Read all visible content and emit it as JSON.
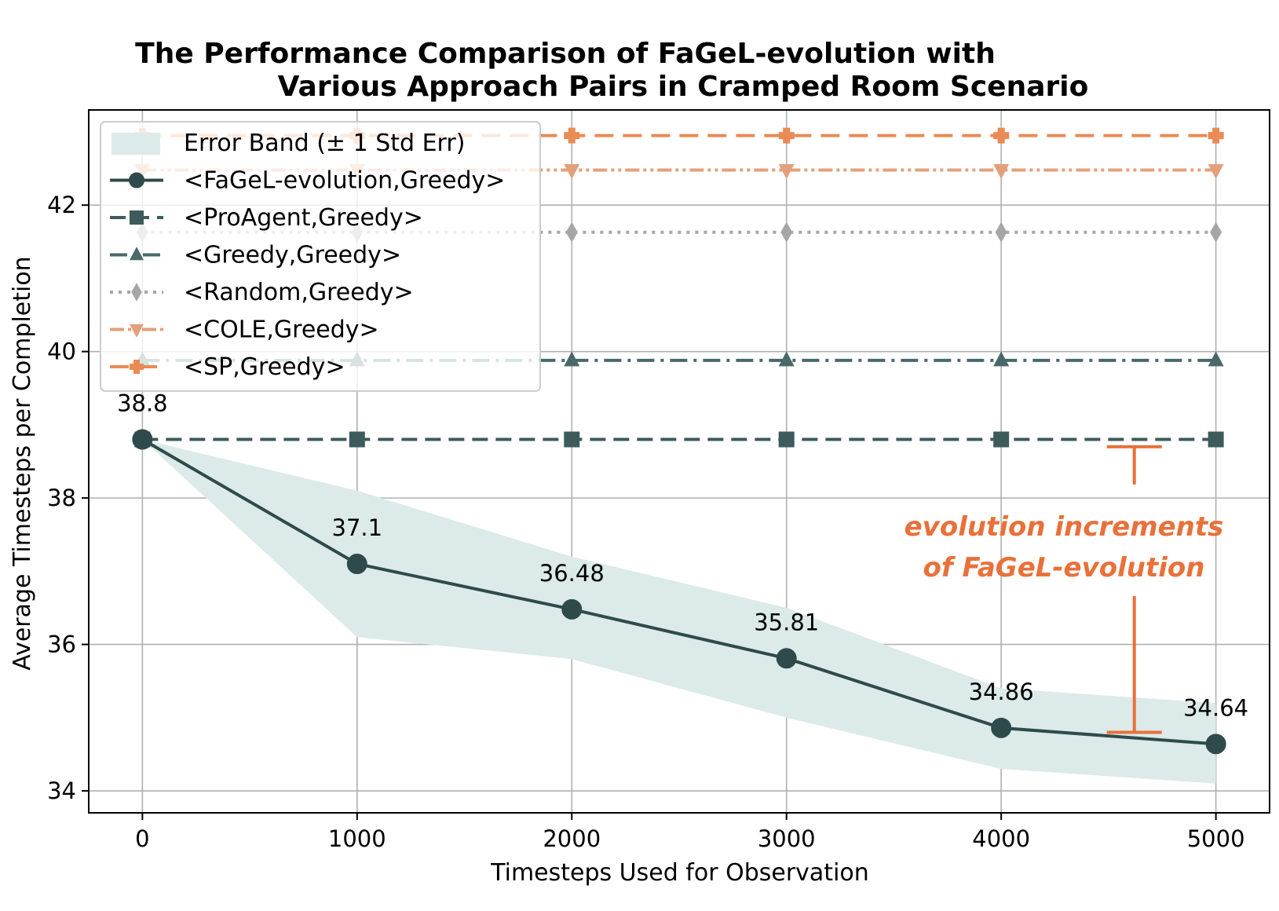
{
  "chart_data": {
    "type": "line",
    "title_line1": "The Performance Comparison of FaGeL-evolution with",
    "title_line2": "Various Approach Pairs in Cramped Room Scenario",
    "xlabel": "Timesteps Used for Observation",
    "ylabel": "Average Timesteps per Completion",
    "x": [
      0,
      1000,
      2000,
      3000,
      4000,
      5000
    ],
    "xlim": [
      -250,
      5250
    ],
    "ylim": [
      33.7,
      43.3
    ],
    "xticks": [
      0,
      1000,
      2000,
      3000,
      4000,
      5000
    ],
    "xtick_labels": [
      "0",
      "1000",
      "2000",
      "3000",
      "4000",
      "5000"
    ],
    "yticks": [
      34,
      36,
      38,
      40,
      42
    ],
    "ytick_labels": [
      "34",
      "36",
      "38",
      "40",
      "42"
    ],
    "grid": true,
    "legend_position": "top-left",
    "error_band_label": "Error Band (± 1 Std Err)",
    "error_band": {
      "lower": [
        38.8,
        36.1,
        35.8,
        35.0,
        34.3,
        34.1
      ],
      "upper": [
        38.8,
        38.1,
        37.2,
        36.5,
        35.4,
        35.2
      ],
      "color": "#dceaea"
    },
    "series": [
      {
        "name": "<FaGeL-evolution,Greedy>",
        "values": [
          38.8,
          37.1,
          36.48,
          35.81,
          34.86,
          34.64
        ],
        "color": "#2f4a4a",
        "dash": "",
        "marker": "circle",
        "data_labels": [
          "38.8",
          "37.1",
          "36.48",
          "35.81",
          "34.86",
          "34.64"
        ]
      },
      {
        "name": "<ProAgent,Greedy>",
        "values": [
          38.8,
          38.8,
          38.8,
          38.8,
          38.8,
          38.8
        ],
        "color": "#3d5b5b",
        "dash": "20,10",
        "marker": "square"
      },
      {
        "name": "<Greedy,Greedy>",
        "values": [
          39.88,
          39.88,
          39.88,
          39.88,
          39.88,
          39.88
        ],
        "color": "#496969",
        "dash": "22,8,4,8",
        "marker": "triangle-up"
      },
      {
        "name": "<Random,Greedy>",
        "values": [
          41.63,
          41.63,
          41.63,
          41.63,
          41.63,
          41.63
        ],
        "color": "#a6a6a6",
        "dash": "4,7",
        "marker": "diamond"
      },
      {
        "name": "<COLE,Greedy>",
        "values": [
          42.48,
          42.48,
          42.48,
          42.48,
          42.48,
          42.48
        ],
        "color": "#e3a07c",
        "dash": "18,5,4,5,4,5",
        "marker": "triangle-down"
      },
      {
        "name": "<SP,Greedy>",
        "values": [
          42.95,
          42.95,
          42.95,
          42.95,
          42.95,
          42.95
        ],
        "color": "#ea8a55",
        "dash": "24,12",
        "marker": "plus"
      }
    ],
    "annotation": {
      "line1": "evolution increments",
      "line2": "of FaGeL-evolution",
      "color": "#e8713a",
      "bracket_top": 38.7,
      "bracket_bottom": 34.8,
      "bracket_x": 4620
    }
  }
}
